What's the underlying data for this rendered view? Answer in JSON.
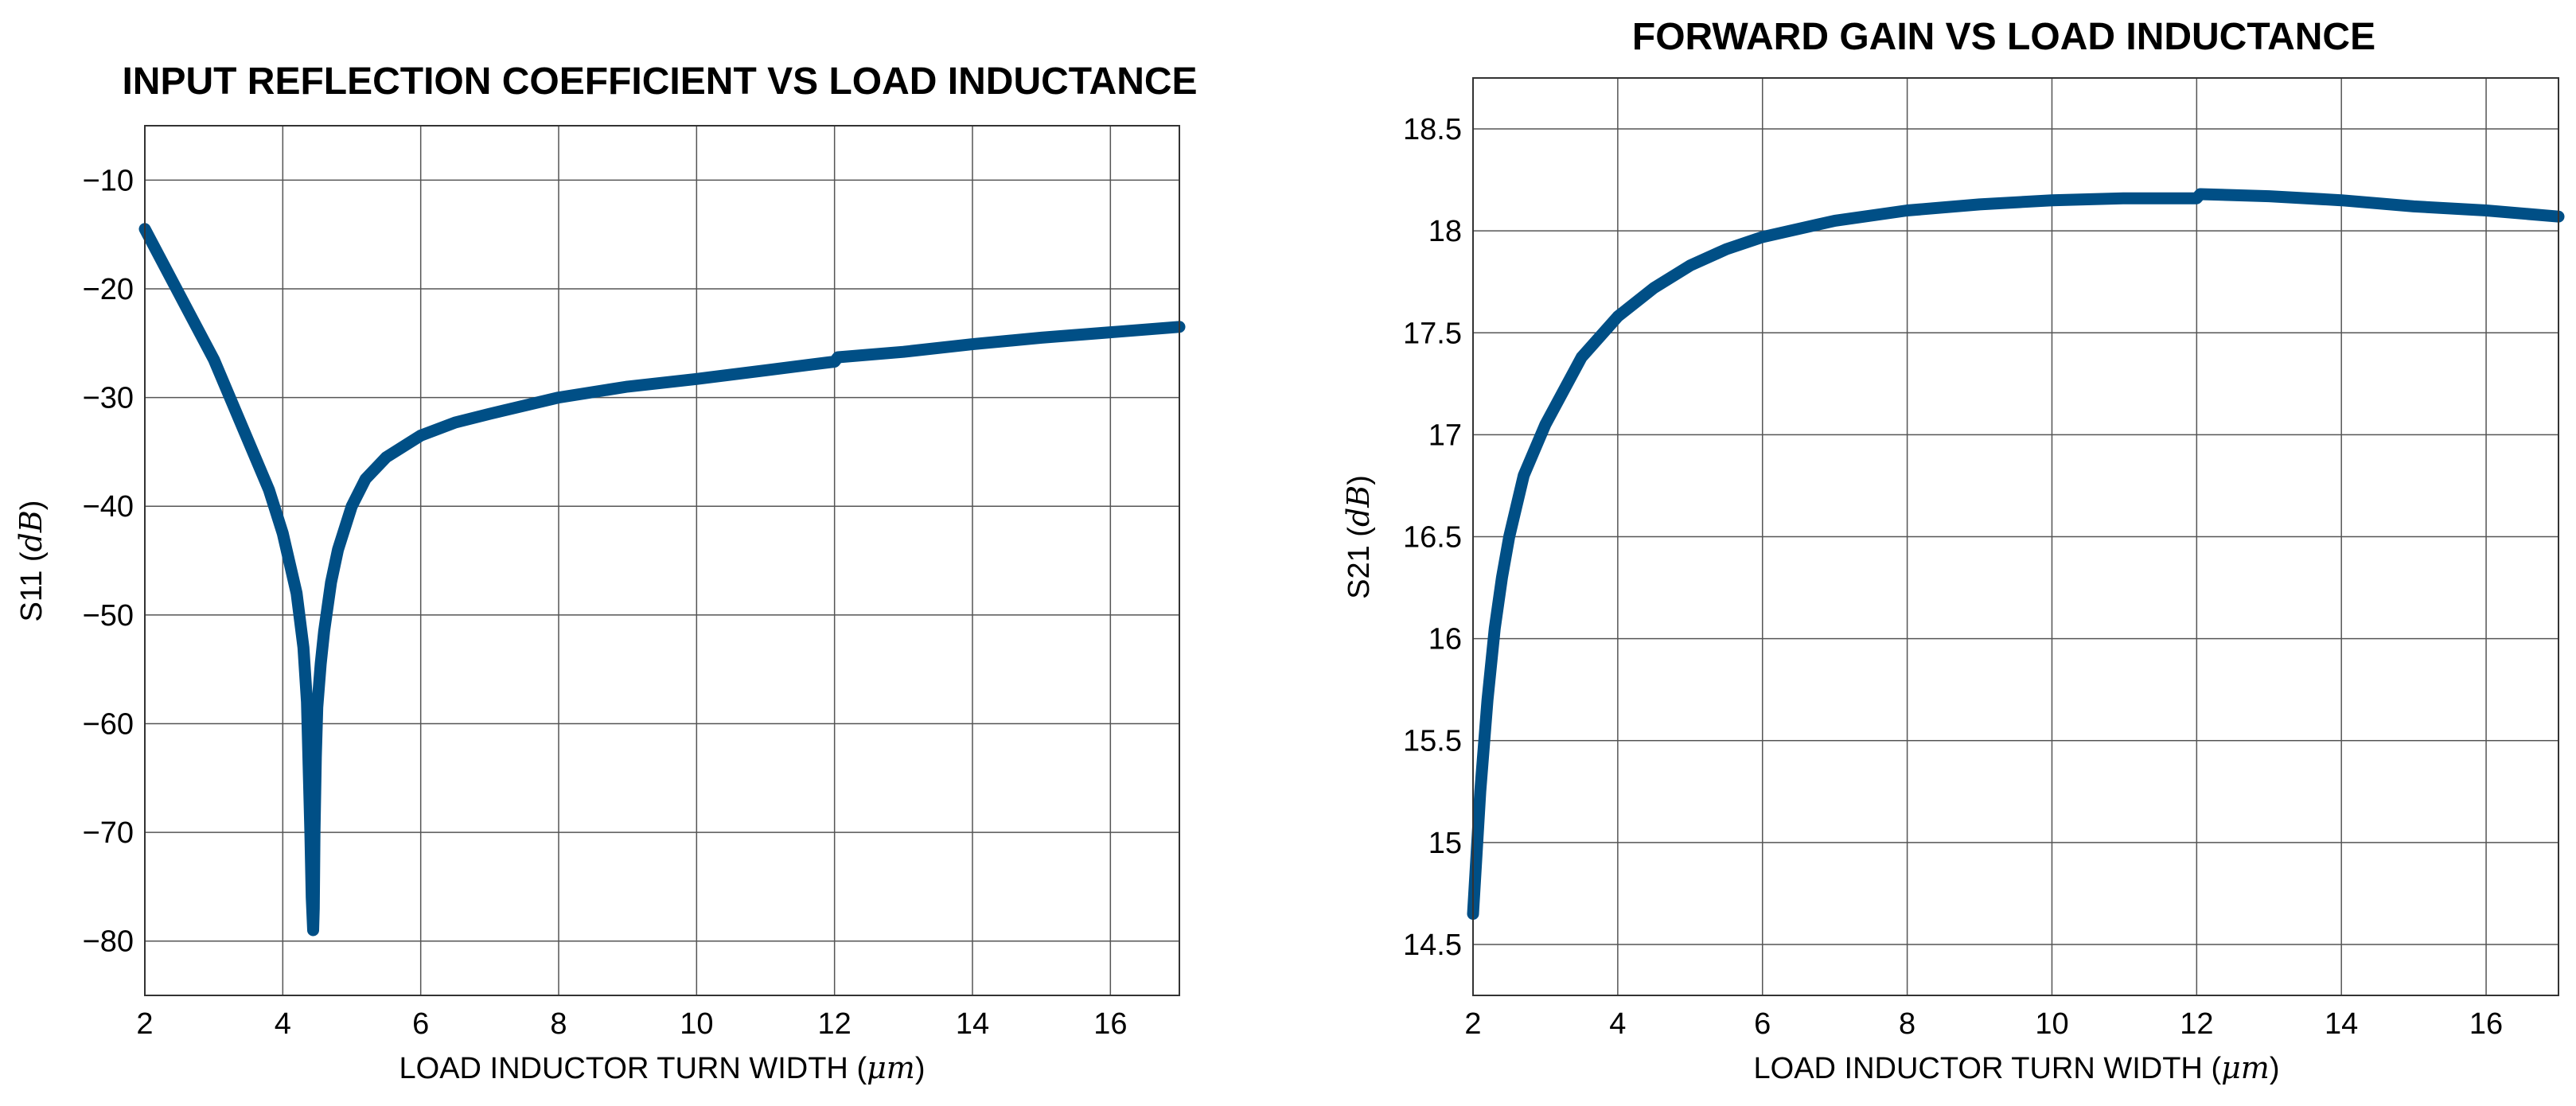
{
  "series_color": "#004f86",
  "chart_data": [
    {
      "type": "line",
      "title": "INPUT REFLECTION COEFFICIENT VS LOAD INDUCTANCE",
      "xlabel": "LOAD INDUCTOR TURN WIDTH",
      "xlabel_unit": "μm",
      "ylabel": "S11",
      "ylabel_unit": "dB",
      "xlim": [
        2,
        17
      ],
      "ylim": [
        -85,
        -5
      ],
      "xticks": [
        2,
        4,
        6,
        8,
        10,
        12,
        14,
        16
      ],
      "yticks": [
        -80,
        -70,
        -60,
        -50,
        -40,
        -30,
        -20,
        -10
      ],
      "xtick_labels": [
        "2",
        "4",
        "6",
        "8",
        "10",
        "12",
        "14",
        "16"
      ],
      "ytick_labels": [
        "−80",
        "−70",
        "−60",
        "−50",
        "−40",
        "−30",
        "−20",
        "−10"
      ],
      "grid": true,
      "series": [
        {
          "name": "S11",
          "x": [
            2.0,
            2.5,
            3.0,
            3.5,
            3.8,
            4.0,
            4.2,
            4.3,
            4.35,
            4.4,
            4.42,
            4.44,
            4.45,
            4.46,
            4.48,
            4.5,
            4.55,
            4.6,
            4.7,
            4.8,
            5.0,
            5.2,
            5.5,
            6.0,
            6.5,
            7.0,
            8.0,
            9.0,
            10.0,
            11.0,
            12.0,
            12.05,
            13.0,
            14.0,
            15.0,
            16.0,
            17.0
          ],
          "y": [
            -14.5,
            -20.5,
            -26.5,
            -34.0,
            -38.5,
            -42.5,
            -48.0,
            -53.0,
            -58.0,
            -70.0,
            -76.0,
            -79.0,
            -77.0,
            -70.0,
            -63.0,
            -58.5,
            -54.5,
            -51.5,
            -47.0,
            -44.0,
            -40.0,
            -37.5,
            -35.5,
            -33.5,
            -32.3,
            -31.5,
            -30.0,
            -29.0,
            -28.3,
            -27.5,
            -26.7,
            -26.3,
            -25.8,
            -25.1,
            -24.5,
            -24.0,
            -23.5
          ]
        }
      ]
    },
    {
      "type": "line",
      "title": "FORWARD GAIN VS LOAD INDUCTANCE",
      "xlabel": "LOAD INDUCTOR TURN WIDTH",
      "xlabel_unit": "μm",
      "ylabel": "S21",
      "ylabel_unit": "dB",
      "xlim": [
        2,
        17
      ],
      "ylim": [
        14.25,
        18.75
      ],
      "xticks": [
        2,
        4,
        6,
        8,
        10,
        12,
        14,
        16
      ],
      "yticks": [
        14.5,
        15,
        15.5,
        16,
        16.5,
        17,
        17.5,
        18,
        18.5
      ],
      "xtick_labels": [
        "2",
        "4",
        "6",
        "8",
        "10",
        "12",
        "14",
        "16"
      ],
      "ytick_labels": [
        "14.5",
        "15",
        "15.5",
        "16",
        "16.5",
        "17",
        "17.5",
        "18",
        "18.5"
      ],
      "grid": true,
      "series": [
        {
          "name": "S21",
          "x": [
            2.0,
            2.1,
            2.2,
            2.3,
            2.4,
            2.5,
            2.7,
            3.0,
            3.5,
            4.0,
            4.5,
            5.0,
            5.5,
            6.0,
            7.0,
            8.0,
            9.0,
            10.0,
            11.0,
            12.0,
            12.05,
            13.0,
            14.0,
            15.0,
            16.0,
            17.0
          ],
          "y": [
            14.65,
            15.25,
            15.7,
            16.05,
            16.3,
            16.5,
            16.8,
            17.05,
            17.38,
            17.58,
            17.72,
            17.83,
            17.91,
            17.97,
            18.05,
            18.1,
            18.13,
            18.15,
            18.16,
            18.16,
            18.18,
            18.17,
            18.15,
            18.12,
            18.1,
            18.07
          ]
        }
      ]
    }
  ]
}
